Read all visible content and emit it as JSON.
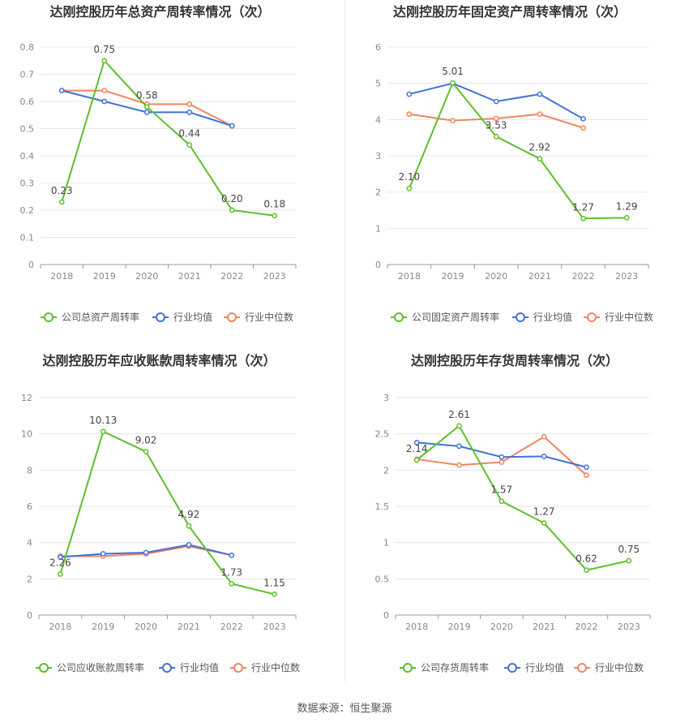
{
  "footer": "数据来源：恒生聚源",
  "colors": {
    "company": "#5cc02a",
    "avg": "#3f72d9",
    "median": "#f0855f",
    "grid": "#e6e6e6",
    "axis": "#999999"
  },
  "chart_data": [
    {
      "type": "line",
      "title": "达刚控股历年总资产周转率情况（次）",
      "categories": [
        "2018",
        "2019",
        "2020",
        "2021",
        "2022",
        "2023"
      ],
      "ylim": [
        0,
        0.8
      ],
      "yticks": [
        "0",
        "0.1",
        "0.2",
        "0.3",
        "0.4",
        "0.5",
        "0.6",
        "0.7",
        "0.8"
      ],
      "legend_position": "bottom",
      "series": [
        {
          "name": "公司总资产周转率",
          "values": [
            0.23,
            0.75,
            0.58,
            0.44,
            0.2,
            0.18
          ],
          "labels": [
            "0.23",
            "0.75",
            "0.58",
            "0.44",
            "0.20",
            "0.18"
          ]
        },
        {
          "name": "行业均值",
          "values": [
            0.64,
            0.6,
            0.56,
            0.56,
            0.51,
            null
          ]
        },
        {
          "name": "行业中位数",
          "values": [
            0.64,
            0.64,
            0.59,
            0.59,
            0.51,
            null
          ]
        }
      ]
    },
    {
      "type": "line",
      "title": "达刚控股历年固定资产周转率情况（次）",
      "categories": [
        "2018",
        "2019",
        "2020",
        "2021",
        "2022",
        "2023"
      ],
      "ylim": [
        0,
        6
      ],
      "yticks": [
        "0",
        "1",
        "2",
        "3",
        "4",
        "5",
        "6"
      ],
      "legend_position": "bottom",
      "series": [
        {
          "name": "公司固定资产周转率",
          "values": [
            2.1,
            5.01,
            3.53,
            2.92,
            1.27,
            1.29
          ],
          "labels": [
            "2.10",
            "5.01",
            "3.53",
            "2.92",
            "1.27",
            "1.29"
          ]
        },
        {
          "name": "行业均值",
          "values": [
            4.7,
            5.0,
            4.5,
            4.7,
            4.02,
            null
          ]
        },
        {
          "name": "行业中位数",
          "values": [
            4.15,
            3.97,
            4.03,
            4.15,
            3.77,
            null
          ]
        }
      ]
    },
    {
      "type": "line",
      "title": "达刚控股历年应收账款周转率情况（次）",
      "categories": [
        "2018",
        "2019",
        "2020",
        "2021",
        "2022",
        "2023"
      ],
      "ylim": [
        0,
        12
      ],
      "yticks": [
        "0",
        "2",
        "4",
        "6",
        "8",
        "10",
        "12"
      ],
      "legend_position": "bottom",
      "series": [
        {
          "name": "公司应收账款周转率",
          "values": [
            2.26,
            10.13,
            9.02,
            4.92,
            1.73,
            1.15
          ],
          "labels": [
            "2.26",
            "10.13",
            "9.02",
            "4.92",
            "1.73",
            "1.15"
          ]
        },
        {
          "name": "行业均值",
          "values": [
            3.2,
            3.38,
            3.45,
            3.88,
            3.3,
            null
          ]
        },
        {
          "name": "行业中位数",
          "values": [
            3.25,
            3.25,
            3.38,
            3.8,
            3.3,
            null
          ]
        }
      ]
    },
    {
      "type": "line",
      "title": "达刚控股历年存货周转率情况（次）",
      "categories": [
        "2018",
        "2019",
        "2020",
        "2021",
        "2022",
        "2023"
      ],
      "ylim": [
        0,
        3
      ],
      "yticks": [
        "0",
        "0.5",
        "1",
        "1.5",
        "2",
        "2.5",
        "3"
      ],
      "legend_position": "bottom",
      "series": [
        {
          "name": "公司存货周转率",
          "values": [
            2.14,
            2.61,
            1.57,
            1.27,
            0.62,
            0.75
          ],
          "labels": [
            "2.14",
            "2.61",
            "1.57",
            "1.27",
            "0.62",
            "0.75"
          ]
        },
        {
          "name": "行业均值",
          "values": [
            2.38,
            2.33,
            2.18,
            2.19,
            2.04,
            null
          ]
        },
        {
          "name": "行业中位数",
          "values": [
            2.15,
            2.07,
            2.11,
            2.46,
            1.93,
            null
          ]
        }
      ]
    }
  ]
}
